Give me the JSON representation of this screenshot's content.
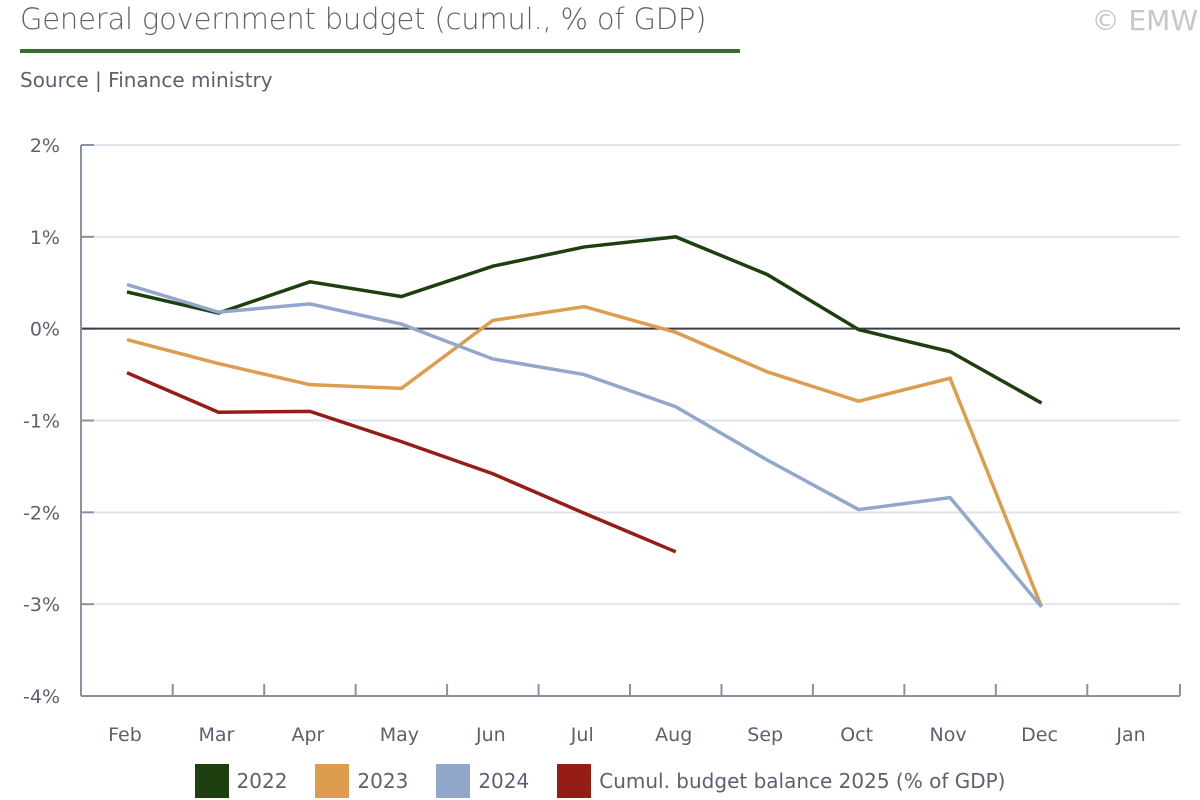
{
  "header": {
    "title": "General government budget (cumul., % of GDP)",
    "copyright": "© EMW",
    "source": "Source | Finance ministry",
    "accent_color": "#3a6b2e"
  },
  "chart_data": {
    "type": "line",
    "title": "General government budget (cumul., % of GDP)",
    "subtitle": "Source | Finance ministry",
    "xlabel": "",
    "ylabel": "",
    "categories": [
      "Feb",
      "Mar",
      "Apr",
      "May",
      "Jun",
      "Jul",
      "Aug",
      "Sep",
      "Oct",
      "Nov",
      "Dec",
      "Jan"
    ],
    "y_ticks": [
      2,
      1,
      0,
      -1,
      -2,
      -3,
      -4
    ],
    "y_tick_labels": [
      "2%",
      "1%",
      "0%",
      "-1%",
      "-2%",
      "-3%",
      "-4%"
    ],
    "ylim": [
      -4,
      2
    ],
    "grid": true,
    "zero_line": true,
    "legend_position": "bottom",
    "series": [
      {
        "name": "2022",
        "color": "#1e4010",
        "values": [
          0.4,
          0.17,
          0.51,
          0.35,
          0.68,
          0.89,
          1.0,
          0.59,
          -0.01,
          -0.25,
          -0.81,
          null
        ]
      },
      {
        "name": "2023",
        "color": "#dc9d4f",
        "values": [
          -0.12,
          -0.38,
          -0.61,
          -0.65,
          0.09,
          0.24,
          -0.04,
          -0.47,
          -0.79,
          -0.54,
          -3.03,
          null
        ]
      },
      {
        "name": "2024",
        "color": "#91a7cb",
        "values": [
          0.48,
          0.18,
          0.27,
          0.05,
          -0.33,
          -0.5,
          -0.85,
          -1.43,
          -1.97,
          -1.84,
          -3.03,
          null
        ]
      },
      {
        "name": "Cumul. budget balance 2025 (% of GDP)",
        "color": "#961d16",
        "values": [
          -0.48,
          -0.91,
          -0.9,
          -1.23,
          -1.58,
          -2.01,
          -2.43,
          null,
          null,
          null,
          null,
          null
        ]
      }
    ]
  },
  "legend": {
    "items": [
      {
        "label": "2022",
        "color": "#1e4010"
      },
      {
        "label": "2023",
        "color": "#dc9d4f"
      },
      {
        "label": "2024",
        "color": "#91a7cb"
      },
      {
        "label": "Cumul. budget balance 2025 (% of GDP)",
        "color": "#961d16"
      }
    ]
  }
}
